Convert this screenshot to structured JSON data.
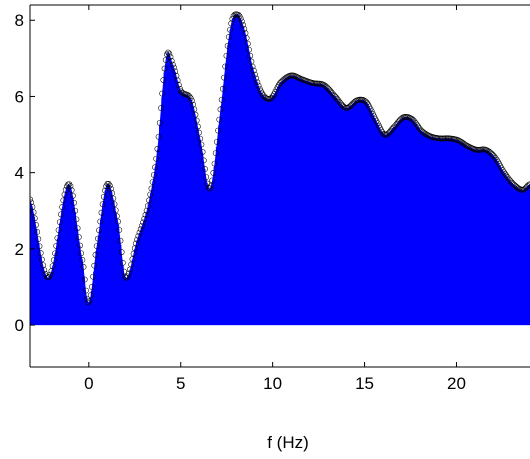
{
  "chart_data": {
    "type": "area",
    "title": "",
    "xlabel": "f (Hz)",
    "ylabel": "",
    "xlim": [
      -3.2,
      24
    ],
    "ylim": [
      -1.1,
      8.4
    ],
    "xticks": [
      0,
      5,
      10,
      15,
      20
    ],
    "yticks": [
      0,
      2,
      4,
      6,
      8
    ],
    "grid": false,
    "legend": "none",
    "series": [
      {
        "color": "#0000ff",
        "marker_color": "#000000",
        "x": [
          -3.2,
          -2.2,
          -1.1,
          -0.3,
          0.0,
          0.4,
          1.0,
          1.6,
          2.0,
          2.6,
          3.2,
          3.7,
          4.2,
          4.6,
          5.0,
          5.6,
          6.1,
          6.6,
          7.2,
          7.7,
          8.1,
          8.5,
          8.9,
          9.4,
          9.9,
          10.4,
          11.0,
          11.6,
          12.2,
          12.8,
          13.4,
          14.0,
          14.6,
          15.1,
          15.6,
          16.1,
          16.6,
          17.1,
          17.6,
          18.1,
          18.6,
          19.1,
          19.6,
          20.1,
          20.6,
          21.1,
          21.6,
          22.1,
          22.6,
          23.1,
          23.6,
          24.0
        ],
        "y": [
          3.3,
          1.25,
          3.7,
          1.6,
          0.6,
          2.0,
          3.7,
          2.7,
          1.25,
          2.2,
          3.1,
          4.5,
          7.0,
          6.8,
          6.15,
          5.9,
          4.8,
          3.6,
          5.8,
          7.8,
          8.15,
          7.7,
          6.8,
          6.1,
          5.95,
          6.35,
          6.55,
          6.45,
          6.35,
          6.3,
          6.0,
          5.7,
          5.9,
          5.85,
          5.4,
          5.0,
          5.2,
          5.45,
          5.4,
          5.1,
          4.95,
          4.9,
          4.9,
          4.85,
          4.7,
          4.6,
          4.6,
          4.4,
          4.0,
          3.7,
          3.55,
          3.7
        ]
      }
    ]
  }
}
